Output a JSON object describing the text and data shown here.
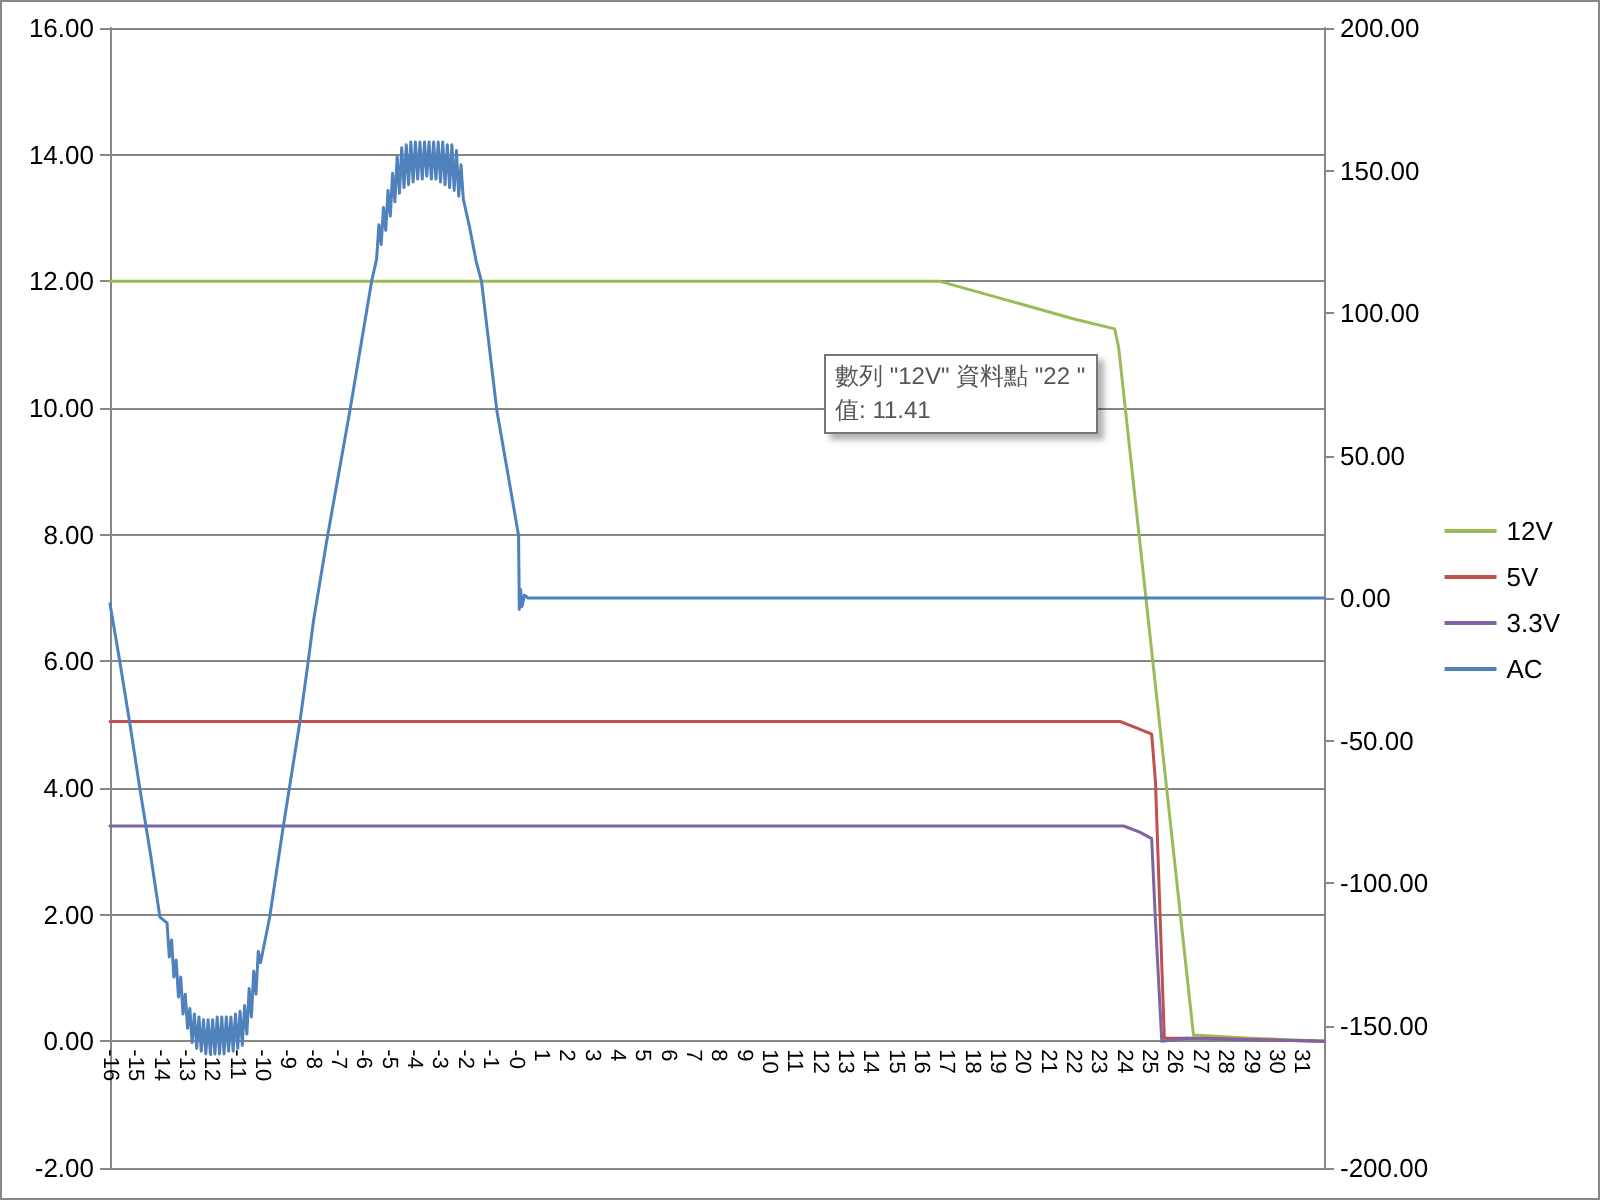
{
  "chart_data": {
    "type": "line",
    "xlim": [
      -16,
      31.9
    ],
    "xticks": [
      -16,
      -15,
      -14,
      -13,
      -12,
      -11,
      -10,
      -9,
      -8,
      -7,
      -6,
      -5,
      -4,
      -3,
      -2,
      -1,
      {
        "value": 0,
        "label": "-0"
      },
      1,
      2,
      3,
      4,
      5,
      6,
      7,
      8,
      9,
      10,
      11,
      12,
      13,
      14,
      15,
      16,
      17,
      18,
      19,
      20,
      21,
      22,
      23,
      24,
      25,
      26,
      27,
      28,
      29,
      30,
      31
    ],
    "ylim": [
      -2,
      16
    ],
    "yticks": [
      {
        "value": -2,
        "label": "-2.00"
      },
      {
        "value": 0,
        "label": "0.00"
      },
      {
        "value": 2,
        "label": "2.00"
      },
      {
        "value": 4,
        "label": "4.00"
      },
      {
        "value": 6,
        "label": "6.00"
      },
      {
        "value": 8,
        "label": "8.00"
      },
      {
        "value": 10,
        "label": "10.00"
      },
      {
        "value": 12,
        "label": "12.00"
      },
      {
        "value": 14,
        "label": "14.00"
      },
      {
        "value": 16,
        "label": "16.00"
      }
    ],
    "y2lim": [
      -200,
      200
    ],
    "y2ticks": [
      {
        "value": -200,
        "label": "-200.00"
      },
      {
        "value": -150,
        "label": "-150.00"
      },
      {
        "value": -100,
        "label": "-100.00"
      },
      {
        "value": -50,
        "label": "-50.00"
      },
      {
        "value": 0,
        "label": "0.00"
      },
      {
        "value": 50,
        "label": "50.00"
      },
      {
        "value": 100,
        "label": "100.00"
      },
      {
        "value": 150,
        "label": "150.00"
      },
      {
        "value": 200,
        "label": "200.00"
      }
    ],
    "grid": "y",
    "legend": "right",
    "marker": "none",
    "series": [
      {
        "name": "12V",
        "color": "#9bbb59",
        "x": [
          -16,
          16.75,
          22,
          23.64,
          23.8,
          26.75,
          29,
          31.9
        ],
        "values": [
          12.0,
          12.0,
          11.41,
          11.25,
          10.95,
          0.1,
          0.05,
          0
        ]
      },
      {
        "name": "5V",
        "color": "#c0504d",
        "x": [
          -16,
          23.85,
          24.5,
          25.1,
          25.25,
          25.6,
          26.5,
          27,
          31.9
        ],
        "values": [
          5.05,
          5.05,
          4.95,
          4.85,
          4.1,
          0.05,
          0.05,
          0.05,
          0
        ]
      },
      {
        "name": "3.3V",
        "color": "#8064a2",
        "x": [
          -16,
          24.0,
          24.65,
          25.1,
          25.25,
          25.5,
          26.5,
          31.9
        ],
        "values": [
          3.4,
          3.4,
          3.3,
          3.2,
          1.9,
          0.0,
          0.05,
          0
        ]
      },
      {
        "name": "AC",
        "color": "#4f81bd",
        "axis": "y2",
        "x": [
          -16,
          -15.6,
          -15.2,
          -14.82,
          -14.4,
          -14.03,
          -13.75,
          -13.66,
          -13.57,
          -13.48,
          -13.39,
          -13.3,
          -13.21,
          -13.12,
          -13.03,
          -12.94,
          -12.85,
          -12.76,
          -12.67,
          -12.58,
          -12.49,
          -12.4,
          -12.31,
          -12.22,
          -12.13,
          -12.04,
          -11.95,
          -11.86,
          -11.77,
          -11.68,
          -11.59,
          -11.5,
          -11.41,
          -11.32,
          -11.23,
          -11.14,
          -11.05,
          -10.96,
          -10.87,
          -10.78,
          -10.69,
          -10.6,
          -10.51,
          -10.42,
          -10.33,
          -10.24,
          -10.15,
          -10.06,
          -9.7,
          -9.16,
          -8.5,
          -8.19,
          -7.97,
          -7.45,
          -6.53,
          -5.68,
          -5.48,
          -5.39,
          -5.3,
          -5.21,
          -5.12,
          -5.03,
          -4.94,
          -4.85,
          -4.76,
          -4.67,
          -4.58,
          -4.49,
          -4.4,
          -4.31,
          -4.22,
          -4.13,
          -4.04,
          -3.95,
          -3.86,
          -3.77,
          -3.68,
          -3.59,
          -3.5,
          -3.41,
          -3.32,
          -3.23,
          -3.14,
          -3.05,
          -2.96,
          -2.87,
          -2.78,
          -2.69,
          -2.6,
          -2.51,
          -2.42,
          -2.33,
          -2.24,
          -2.15,
          -2.06,
          -1.81,
          -1.55,
          -1.34,
          -0.74,
          0.12,
          0.15,
          0.2,
          0.26,
          0.35,
          0.5,
          31.9
        ],
        "values": [
          -2,
          -23,
          -45,
          -67,
          -90,
          -112,
          -114,
          -126,
          -120,
          -133,
          -127,
          -140,
          -133,
          -146,
          -139,
          -151,
          -144,
          -156,
          -146,
          -158,
          -147,
          -159,
          -148,
          -160,
          -148,
          -160,
          -148,
          -160,
          -147,
          -160,
          -147,
          -160,
          -147,
          -159,
          -147,
          -159,
          -146,
          -158,
          -145,
          -157,
          -143,
          -153,
          -137,
          -147,
          -131,
          -139,
          -124,
          -128,
          -112,
          -80,
          -43,
          -23,
          -8,
          20,
          66,
          111,
          119,
          131,
          124,
          137,
          129,
          143,
          134,
          149,
          139,
          155,
          142,
          158,
          144,
          159,
          145,
          160,
          146,
          160,
          147,
          160,
          147,
          160,
          148,
          160,
          147,
          160,
          147,
          160,
          146,
          160,
          145,
          159,
          144,
          159,
          143,
          157,
          141,
          152,
          140,
          130,
          118,
          111,
          66,
          22,
          -4,
          3,
          -3,
          1,
          0,
          0
        ]
      }
    ],
    "annotations": [
      {
        "text": "數列 \"12V\" 資料點 \"22 \"\n值: 11.41",
        "x": 22,
        "y": 11.41
      }
    ]
  }
}
